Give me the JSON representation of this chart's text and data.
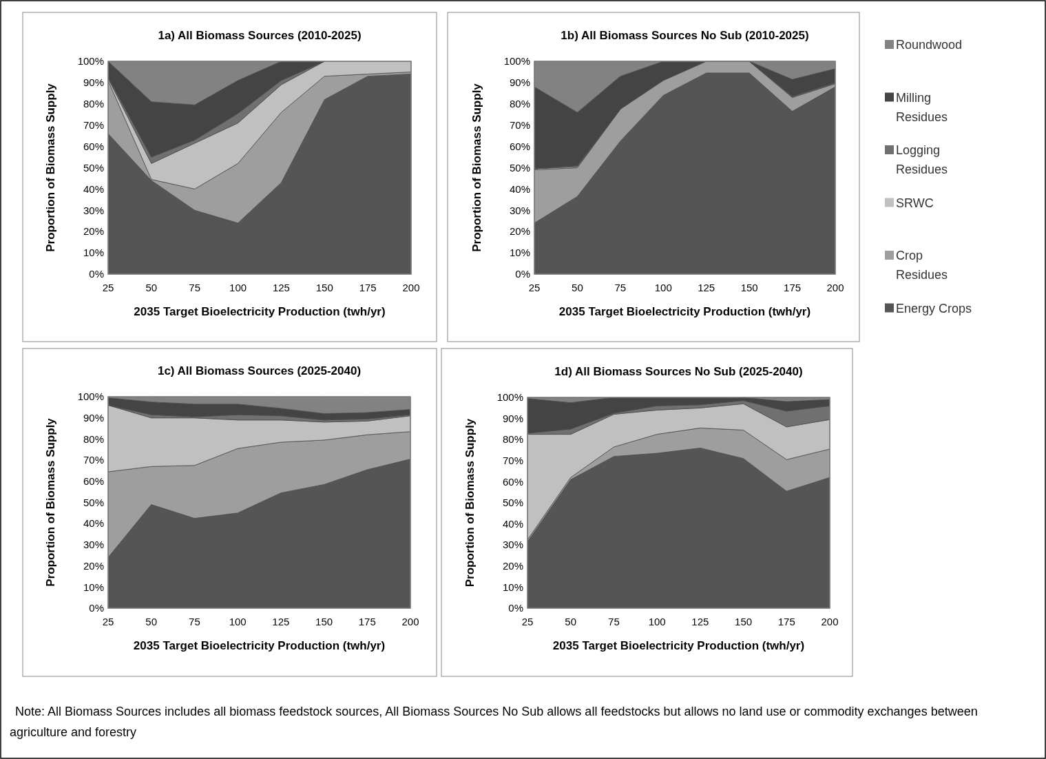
{
  "chart_data": [
    {
      "type": "area",
      "stacked": true,
      "title": "1a) All Biomass Sources (2010-2025)",
      "xlabel": "2035 Target Bioelectricity Production (twh/yr)",
      "ylabel": "Proportion of Biomass Supply",
      "x": [
        25,
        50,
        75,
        100,
        125,
        150,
        175,
        200
      ],
      "xlim": [
        25,
        200
      ],
      "xticks": [
        25,
        50,
        75,
        100,
        125,
        150,
        175,
        200
      ],
      "ylim": [
        0,
        100
      ],
      "yticks": [
        {
          "value": 0,
          "label": "0%"
        },
        {
          "value": 10,
          "label": "10%"
        },
        {
          "value": 20,
          "label": "20%"
        },
        {
          "value": 30,
          "label": "30%"
        },
        {
          "value": 40,
          "label": "40%"
        },
        {
          "value": 50,
          "label": "50%"
        },
        {
          "value": 60,
          "label": "60%"
        },
        {
          "value": 70,
          "label": "70%"
        },
        {
          "value": 80,
          "label": "80%"
        },
        {
          "value": 90,
          "label": "90%"
        },
        {
          "value": 100,
          "label": "100%"
        }
      ],
      "legend": "right",
      "annotations": [
        "Note: All Biomass Sources includes all biomass feedstock sources, All Biomass Sources No Sub allows all feedstocks but allows no land use or commodity exchanges between agriculture and forestry"
      ],
      "series": [
        {
          "name": "Energy Crops",
          "color": "#555555",
          "values": [
            66,
            44,
            30,
            24,
            43,
            82,
            93,
            94
          ]
        },
        {
          "name": "Crop Residues",
          "color": "#9e9e9e",
          "values": [
            25,
            0.5,
            10,
            28,
            33,
            11,
            1,
            1
          ]
        },
        {
          "name": "SRWC",
          "color": "#c0c0c0",
          "values": [
            1,
            7.5,
            21.5,
            19,
            13,
            7,
            6,
            5
          ]
        },
        {
          "name": "Logging Residues",
          "color": "#707070",
          "values": [
            0.5,
            3,
            1.5,
            4.5,
            2,
            0,
            null,
            null
          ]
        },
        {
          "name": "Milling Residues",
          "color": "#444444",
          "values": [
            7.5,
            26,
            16.5,
            15.5,
            9,
            0,
            null,
            null
          ]
        },
        {
          "name": "Roundwood",
          "color": "#828282",
          "values": [
            0,
            19,
            20.5,
            9,
            0,
            null,
            null,
            null
          ]
        }
      ]
    },
    {
      "type": "area",
      "stacked": true,
      "title": "1b) All Biomass Sources No Sub (2010-2025)",
      "xlabel": "2035 Target Bioelectricity Production (twh/yr)",
      "ylabel": "Proportion of Biomass Supply",
      "x": [
        25,
        50,
        75,
        100,
        125,
        150,
        175,
        200
      ],
      "xlim": [
        25,
        200
      ],
      "xticks": [
        25,
        50,
        75,
        100,
        125,
        150,
        175,
        200
      ],
      "ylim": [
        0,
        100
      ],
      "yticks": [
        {
          "value": 0,
          "label": "0%"
        },
        {
          "value": 10,
          "label": "10%"
        },
        {
          "value": 20,
          "label": "20%"
        },
        {
          "value": 30,
          "label": "30%"
        },
        {
          "value": 40,
          "label": "40%"
        },
        {
          "value": 50,
          "label": "50%"
        },
        {
          "value": 60,
          "label": "60%"
        },
        {
          "value": 70,
          "label": "70%"
        },
        {
          "value": 80,
          "label": "80%"
        },
        {
          "value": 90,
          "label": "90%"
        },
        {
          "value": 100,
          "label": "100%"
        }
      ],
      "series": [
        {
          "color": "#555555",
          "values": [
            24,
            36.5,
            62.5,
            84,
            94.5,
            94.5,
            76.5,
            88
          ]
        },
        {
          "color": "#9e9e9e",
          "values": [
            25,
            13.5,
            15,
            7,
            5.5,
            5.5,
            6.5,
            1.5
          ]
        },
        {
          "color": "#c0c0c0",
          "values": [
            0.5,
            0.5,
            0,
            null,
            null,
            null,
            null,
            null
          ]
        },
        {
          "color": "#707070",
          "values": [
            0,
            0.5,
            0,
            null,
            null,
            0,
            0.5,
            0.5
          ]
        },
        {
          "color": "#444444",
          "values": [
            38.5,
            25,
            15.5,
            9,
            0,
            0,
            8,
            6.5
          ]
        },
        {
          "color": "#828282",
          "values": [
            12,
            24,
            7,
            0,
            null,
            0,
            8.5,
            3.5
          ]
        }
      ]
    },
    {
      "type": "area",
      "stacked": true,
      "title": "1c) All Biomass Sources (2025-2040)",
      "xlabel": "2035 Target Bioelectricity Production (twh/yr)",
      "ylabel": "Proportion of Biomass Supply",
      "x": [
        25,
        50,
        75,
        100,
        125,
        150,
        175,
        200
      ],
      "xlim": [
        25,
        200
      ],
      "xticks": [
        25,
        50,
        75,
        100,
        125,
        150,
        175,
        200
      ],
      "ylim": [
        0,
        100
      ],
      "yticks": [
        {
          "value": 0,
          "label": "0%"
        },
        {
          "value": 10,
          "label": "10%"
        },
        {
          "value": 20,
          "label": "20%"
        },
        {
          "value": 30,
          "label": "30%"
        },
        {
          "value": 40,
          "label": "40%"
        },
        {
          "value": 50,
          "label": "50%"
        },
        {
          "value": 60,
          "label": "60%"
        },
        {
          "value": 70,
          "label": "70%"
        },
        {
          "value": 80,
          "label": "80%"
        },
        {
          "value": 90,
          "label": "90%"
        },
        {
          "value": 100,
          "label": "100%"
        }
      ],
      "series": [
        {
          "color": "#555555",
          "values": [
            24,
            49,
            42.5,
            45,
            54.5,
            58.5,
            65.5,
            70.5
          ]
        },
        {
          "color": "#9e9e9e",
          "values": [
            40.5,
            18,
            25,
            30.5,
            24,
            21,
            16.5,
            13
          ]
        },
        {
          "color": "#c0c0c0",
          "values": [
            31.5,
            23,
            22.5,
            13.5,
            10.5,
            8.5,
            6.5,
            7.5
          ]
        },
        {
          "color": "#707070",
          "values": [
            0,
            1.5,
            0.5,
            2.5,
            2,
            1,
            1,
            0.5
          ]
        },
        {
          "color": "#444444",
          "values": [
            3.5,
            6,
            6,
            5,
            3.5,
            3,
            3,
            2.5
          ]
        },
        {
          "color": "#828282",
          "values": [
            0.5,
            2.5,
            3.5,
            3.5,
            5.5,
            8,
            7.5,
            6
          ]
        }
      ]
    },
    {
      "type": "area",
      "stacked": true,
      "title": "1d) All Biomass Sources No Sub (2025-2040)",
      "xlabel": "2035 Target Bioelectricity Production (twh/yr)",
      "ylabel": "Proportion of Biomass Supply",
      "x": [
        25,
        50,
        75,
        100,
        125,
        150,
        175,
        200
      ],
      "xlim": [
        25,
        200
      ],
      "xticks": [
        25,
        50,
        75,
        100,
        125,
        150,
        175,
        200
      ],
      "ylim": [
        0,
        100
      ],
      "yticks": [
        {
          "value": 0,
          "label": "0%"
        },
        {
          "value": 10,
          "label": "10%"
        },
        {
          "value": 20,
          "label": "20%"
        },
        {
          "value": 30,
          "label": "30%"
        },
        {
          "value": 40,
          "label": "40%"
        },
        {
          "value": 50,
          "label": "50%"
        },
        {
          "value": 60,
          "label": "60%"
        },
        {
          "value": 70,
          "label": "70%"
        },
        {
          "value": 80,
          "label": "80%"
        },
        {
          "value": 90,
          "label": "90%"
        },
        {
          "value": 100,
          "label": "100%"
        }
      ],
      "series": [
        {
          "color": "#555555",
          "values": [
            31.5,
            61,
            72,
            73.5,
            76,
            71,
            55.5,
            62
          ]
        },
        {
          "color": "#9e9e9e",
          "values": [
            1,
            1,
            4.5,
            9,
            9.5,
            13.5,
            15,
            13.5
          ]
        },
        {
          "color": "#c0c0c0",
          "values": [
            50,
            20.5,
            15.5,
            11.5,
            9.5,
            12.5,
            15.5,
            14
          ]
        },
        {
          "color": "#707070",
          "values": [
            0.5,
            2.5,
            0.5,
            2,
            1.5,
            1.5,
            7.5,
            6.5
          ]
        },
        {
          "color": "#444444",
          "values": [
            16.5,
            12.5,
            7.5,
            4,
            3.5,
            1.5,
            4.5,
            3
          ]
        },
        {
          "color": "#828282",
          "values": [
            0.5,
            2.5,
            0,
            null,
            null,
            0,
            2,
            1
          ]
        }
      ]
    }
  ]
}
